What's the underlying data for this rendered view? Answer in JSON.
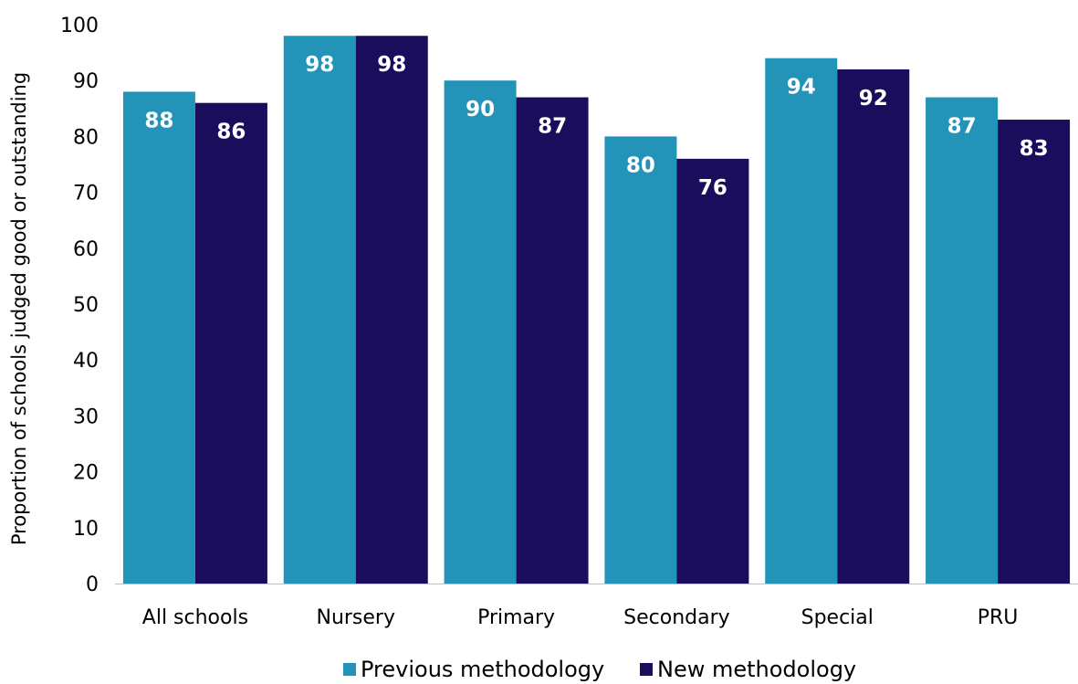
{
  "chart_data": {
    "type": "bar",
    "title": "",
    "xlabel": "",
    "ylabel": "Proportion of schools judged good or outstanding",
    "ylim": [
      0,
      100
    ],
    "yticks": [
      0,
      10,
      20,
      30,
      40,
      50,
      60,
      70,
      80,
      90,
      100
    ],
    "grid": false,
    "legend_position": "bottom",
    "categories": [
      "All schools",
      "Nursery",
      "Primary",
      "Secondary",
      "Special",
      "PRU"
    ],
    "series": [
      {
        "name": "Previous methodology",
        "color": "#2493b8",
        "values": [
          88,
          98,
          90,
          80,
          94,
          87
        ]
      },
      {
        "name": "New methodology",
        "color": "#1a0e5c",
        "values": [
          86,
          98,
          87,
          76,
          92,
          83
        ]
      }
    ],
    "data_labels": true
  }
}
